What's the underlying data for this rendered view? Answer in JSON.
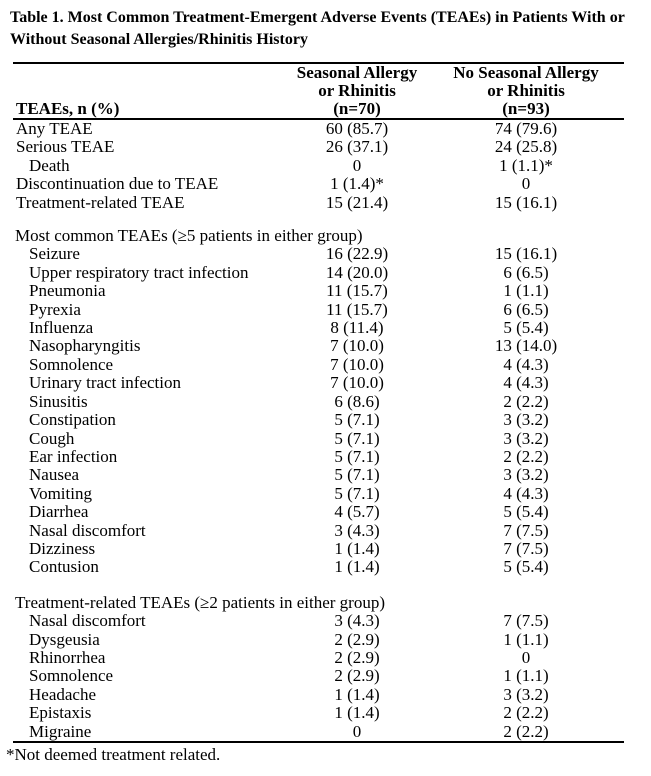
{
  "title": {
    "line1": "Table 1. Most Common Treatment-Emergent Adverse Events (TEAEs) in Patients With or",
    "line2": "Without Seasonal Allergies/Rhinitis History"
  },
  "table": {
    "stub_header": "TEAEs, n (%)",
    "col_groups": [
      {
        "lines": [
          "Seasonal Allergy",
          "or Rhinitis",
          "(n=70)"
        ]
      },
      {
        "lines": [
          "No Seasonal Allergy",
          "or Rhinitis",
          "(n=93)"
        ]
      }
    ],
    "sections": [
      {
        "rows": [
          {
            "label": "Any TEAE",
            "c1": "60 (85.7)",
            "c2": "74 (79.6)"
          },
          {
            "label": "Serious TEAE",
            "c1": "26 (37.1)",
            "c2": "24 (25.8)"
          },
          {
            "label": "Death",
            "c1": "0",
            "c2": "1 (1.1)*"
          },
          {
            "label": "Discontinuation due to TEAE",
            "c1": "1 (1.4)*",
            "c2": "0"
          },
          {
            "label": "Treatment-related TEAE",
            "c1": "15 (21.4)",
            "c2": "15 (16.1)"
          }
        ]
      },
      {
        "heading": "Most common TEAEs (≥5 patients in either group)",
        "rows": [
          {
            "label": "Seizure",
            "c1": "16 (22.9)",
            "c2": "15 (16.1)"
          },
          {
            "label": "Upper respiratory tract infection",
            "c1": "14 (20.0)",
            "c2": "6 (6.5)"
          },
          {
            "label": "Pneumonia",
            "c1": "11 (15.7)",
            "c2": "1 (1.1)"
          },
          {
            "label": "Pyrexia",
            "c1": "11 (15.7)",
            "c2": "6 (6.5)"
          },
          {
            "label": "Influenza",
            "c1": "8 (11.4)",
            "c2": "5 (5.4)"
          },
          {
            "label": "Nasopharyngitis",
            "c1": "7 (10.0)",
            "c2": "13 (14.0)"
          },
          {
            "label": "Somnolence",
            "c1": "7 (10.0)",
            "c2": "4 (4.3)"
          },
          {
            "label": "Urinary tract infection",
            "c1": "7 (10.0)",
            "c2": "4 (4.3)"
          },
          {
            "label": "Sinusitis",
            "c1": "6 (8.6)",
            "c2": "2 (2.2)"
          },
          {
            "label": "Constipation",
            "c1": "5 (7.1)",
            "c2": "3 (3.2)"
          },
          {
            "label": "Cough",
            "c1": "5 (7.1)",
            "c2": "3 (3.2)"
          },
          {
            "label": "Ear infection",
            "c1": "5 (7.1)",
            "c2": "2 (2.2)"
          },
          {
            "label": "Nausea",
            "c1": "5 (7.1)",
            "c2": "3 (3.2)"
          },
          {
            "label": "Vomiting",
            "c1": "5 (7.1)",
            "c2": "4 (4.3)"
          },
          {
            "label": "Diarrhea",
            "c1": "4 (5.7)",
            "c2": "5 (5.4)"
          },
          {
            "label": "Nasal discomfort",
            "c1": "3 (4.3)",
            "c2": "7 (7.5)"
          },
          {
            "label": "Dizziness",
            "c1": "1 (1.4)",
            "c2": "7 (7.5)"
          },
          {
            "label": "Contusion",
            "c1": "1 (1.4)",
            "c2": "5 (5.4)"
          }
        ]
      },
      {
        "heading": "Treatment-related TEAEs (≥2 patients in either group)",
        "rows": [
          {
            "label": "Nasal discomfort",
            "c1": "3 (4.3)",
            "c2": "7 (7.5)"
          },
          {
            "label": "Dysgeusia",
            "c1": "2 (2.9)",
            "c2": "1 (1.1)"
          },
          {
            "label": "Rhinorrhea",
            "c1": "2 (2.9)",
            "c2": "0"
          },
          {
            "label": "Somnolence",
            "c1": "2 (2.9)",
            "c2": "1 (1.1)"
          },
          {
            "label": "Headache",
            "c1": "1 (1.4)",
            "c2": "3 (3.2)"
          },
          {
            "label": "Epistaxis",
            "c1": "1 (1.4)",
            "c2": "2 (2.2)"
          },
          {
            "label": "Migraine",
            "c1": "0",
            "c2": "2 (2.2)"
          }
        ]
      }
    ],
    "footnote": "*Not deemed treatment related."
  },
  "colors": {
    "text": "#000000",
    "background": "#ffffff",
    "rule": "#000000"
  }
}
